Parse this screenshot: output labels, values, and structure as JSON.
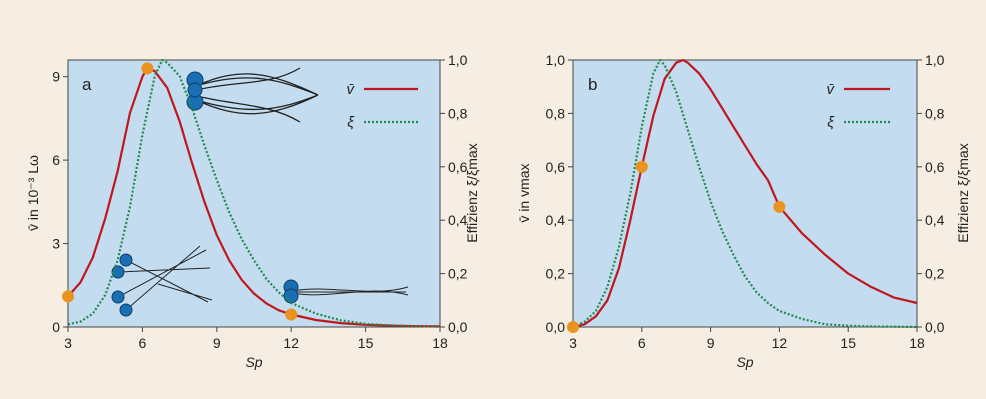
{
  "figure": {
    "background": "#f6eee2",
    "plot_bg": "#c3dcef"
  },
  "colors": {
    "v": "#c0171d",
    "xi": "#1f8a4e",
    "marker": "#e9941f",
    "swimmer": "#1a6fb3"
  },
  "chart_data": [
    {
      "type": "line",
      "panel": "a",
      "xlabel": "Sp",
      "ylabel_left": "v̄ in 10⁻³ Lω",
      "ylabel_right": "Effizienz ξ/ξmax",
      "xlim": [
        3,
        18
      ],
      "ylim_left": [
        0,
        9.6
      ],
      "ylim_right": [
        0,
        1.0
      ],
      "xticks": [
        "3",
        "6",
        "9",
        "12",
        "15",
        "18"
      ],
      "yticks_left": [
        "0",
        "3",
        "6",
        "9"
      ],
      "yticks_right": [
        "0,0",
        "0,2",
        "0,4",
        "0,6",
        "0,8",
        "1,0"
      ],
      "legend": [
        "v̄",
        "ξ"
      ],
      "series": [
        {
          "name": "v̄",
          "axis": "left",
          "style": "solid",
          "x": [
            3,
            3.5,
            4,
            4.5,
            5,
            5.5,
            6,
            6.2,
            6.5,
            7,
            7.5,
            8,
            8.5,
            9,
            9.5,
            10,
            10.5,
            11,
            11.5,
            12,
            13,
            14,
            15,
            16,
            17,
            18
          ],
          "y": [
            1.1,
            1.6,
            2.5,
            3.9,
            5.6,
            7.7,
            9.0,
            9.3,
            9.2,
            8.6,
            7.4,
            5.9,
            4.5,
            3.3,
            2.4,
            1.7,
            1.2,
            0.85,
            0.6,
            0.45,
            0.25,
            0.14,
            0.08,
            0.05,
            0.03,
            0.02
          ]
        },
        {
          "name": "ξ",
          "axis": "right",
          "style": "dotted",
          "x": [
            3,
            3.5,
            4,
            4.5,
            5,
            5.5,
            6,
            6.5,
            6.8,
            7,
            7.5,
            8,
            8.5,
            9,
            9.5,
            10,
            10.5,
            11,
            11.5,
            12,
            13,
            14,
            15,
            16,
            17,
            18
          ],
          "y": [
            0.01,
            0.02,
            0.05,
            0.12,
            0.25,
            0.45,
            0.72,
            0.94,
            1.0,
            0.99,
            0.94,
            0.82,
            0.68,
            0.55,
            0.43,
            0.33,
            0.25,
            0.18,
            0.13,
            0.09,
            0.05,
            0.025,
            0.012,
            0.006,
            0.003,
            0.001
          ]
        }
      ],
      "markers": [
        {
          "x": 3,
          "y": 1.1
        },
        {
          "x": 6.2,
          "y": 9.3
        },
        {
          "x": 12,
          "y": 0.45
        }
      ]
    },
    {
      "type": "line",
      "panel": "b",
      "xlabel": "Sp",
      "ylabel_left": "v̄ in vmax",
      "ylabel_right": "Effizienz ξ/ξmax",
      "xlim": [
        3,
        18
      ],
      "ylim_left": [
        0,
        1.0
      ],
      "ylim_right": [
        0,
        1.0
      ],
      "xticks": [
        "3",
        "6",
        "9",
        "12",
        "15",
        "18"
      ],
      "yticks_left": [
        "0,0",
        "0,2",
        "0,4",
        "0,6",
        "0,8",
        "1,0"
      ],
      "yticks_right": [
        "0,0",
        "0,2",
        "0,4",
        "0,6",
        "0,8",
        "1,0"
      ],
      "legend": [
        "v̄",
        "ξ"
      ],
      "series": [
        {
          "name": "v̄",
          "axis": "left",
          "style": "solid",
          "x": [
            3,
            3.5,
            4,
            4.5,
            5,
            5.5,
            6,
            6.5,
            7,
            7.5,
            7.8,
            8,
            8.5,
            9,
            9.5,
            10,
            10.5,
            11,
            11.5,
            12,
            13,
            14,
            15,
            16,
            17,
            18
          ],
          "y": [
            0.0,
            0.01,
            0.04,
            0.1,
            0.22,
            0.4,
            0.6,
            0.79,
            0.93,
            0.99,
            1.0,
            0.99,
            0.95,
            0.89,
            0.82,
            0.75,
            0.68,
            0.61,
            0.55,
            0.45,
            0.35,
            0.27,
            0.2,
            0.15,
            0.11,
            0.09
          ]
        },
        {
          "name": "ξ",
          "axis": "right",
          "style": "dotted",
          "x": [
            3,
            3.5,
            4,
            4.5,
            5,
            5.5,
            6,
            6.5,
            6.8,
            7,
            7.5,
            8,
            8.5,
            9,
            9.5,
            10,
            10.5,
            11,
            11.5,
            12,
            13,
            14,
            15,
            16,
            17,
            18
          ],
          "y": [
            0.0,
            0.02,
            0.06,
            0.15,
            0.3,
            0.5,
            0.75,
            0.95,
            1.0,
            0.98,
            0.88,
            0.74,
            0.6,
            0.47,
            0.36,
            0.27,
            0.19,
            0.13,
            0.09,
            0.06,
            0.03,
            0.01,
            0.005,
            0.002,
            0.001,
            0.0
          ]
        }
      ],
      "markers": [
        {
          "x": 3,
          "y": 0.0
        },
        {
          "x": 6,
          "y": 0.6
        },
        {
          "x": 12,
          "y": 0.45
        }
      ]
    }
  ]
}
